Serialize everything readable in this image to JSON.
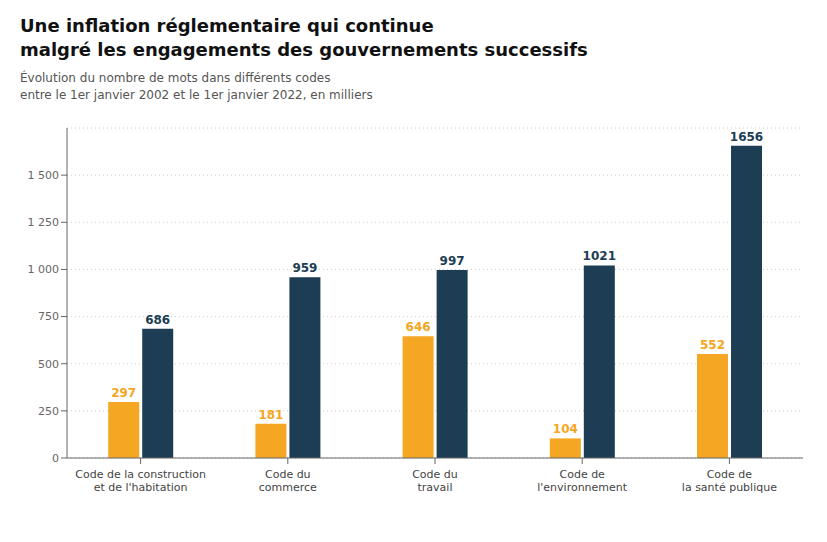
{
  "chart_data": {
    "type": "bar",
    "title": "Une inflation réglementaire qui continue\nmalgré les engagements des gouvernements successifs",
    "subtitle": "Évolution du nombre de mots dans différents codes\nentre le 1er janvier 2002 et le 1er janvier 2022, en milliers",
    "categories": [
      "Code de la construction\net de l'habitation",
      "Code du\ncommerce",
      "Code du\ntravail",
      "Code de\nl'environnement",
      "Code de\nla santé publique"
    ],
    "series": [
      {
        "color": "#F5A623",
        "values": [
          297,
          181,
          646,
          104,
          552
        ]
      },
      {
        "color": "#1C3D54",
        "values": [
          686,
          959,
          997,
          1021,
          1656
        ]
      }
    ],
    "ylim": [
      0,
      1750
    ],
    "yticks": [
      0,
      250,
      500,
      750,
      {
        "value": 1000,
        "label": "1 000"
      },
      {
        "value": 1250,
        "label": "1 250"
      },
      {
        "value": 1500,
        "label": "1 500"
      }
    ],
    "grid": true,
    "data_labels": true
  }
}
